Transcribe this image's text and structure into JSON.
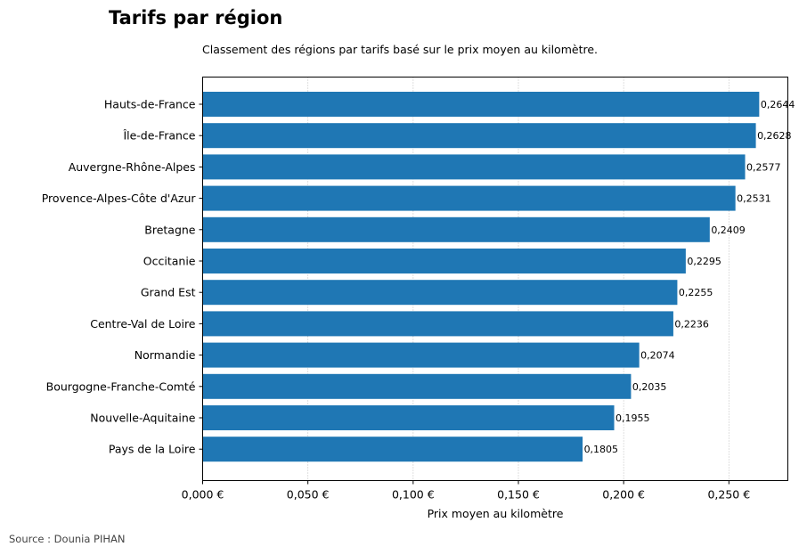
{
  "chart_data": {
    "type": "bar",
    "orientation": "horizontal",
    "title": "Tarifs par région",
    "subtitle": "Classement des régions par tarifs basé sur le prix moyen au kilomètre.",
    "xlabel": "Prix moyen au kilomètre",
    "ylabel": "",
    "source": "Source : Dounia PIHAN",
    "xlim": [
      0,
      0.278
    ],
    "xticks": [
      0,
      0.05,
      0.1,
      0.15,
      0.2,
      0.25
    ],
    "xtick_labels": [
      "0,000 €",
      "0,050 €",
      "0,100 €",
      "0,150 €",
      "0,200 €",
      "0,250 €"
    ],
    "grid": "x-dotted",
    "bar_color": "#1f77b4",
    "categories": [
      "Hauts-de-France",
      "Île-de-France",
      "Auvergne-Rhône-Alpes",
      "Provence-Alpes-Côte d'Azur",
      "Bretagne",
      "Occitanie",
      "Grand Est",
      "Centre-Val de Loire",
      "Normandie",
      "Bourgogne-Franche-Comté",
      "Nouvelle-Aquitaine",
      "Pays de la Loire"
    ],
    "values": [
      0.2644,
      0.2628,
      0.2577,
      0.2531,
      0.2409,
      0.2295,
      0.2255,
      0.2236,
      0.2074,
      0.2035,
      0.1955,
      0.1805
    ],
    "value_labels": [
      "0,2644",
      "0,2628",
      "0,2577",
      "0,2531",
      "0,2409",
      "0,2295",
      "0,2255",
      "0,2236",
      "0,2074",
      "0,2035",
      "0,1955",
      "0,1805"
    ]
  }
}
